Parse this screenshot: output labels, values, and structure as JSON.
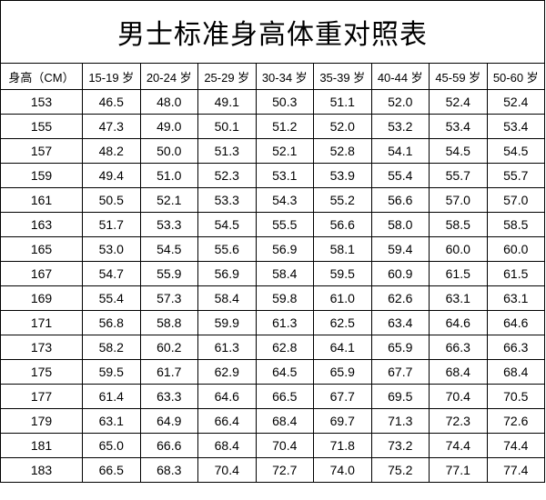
{
  "title": "男士标准身高体重对照表",
  "header": [
    "身高（CM）",
    "15-19 岁",
    "20-24 岁",
    "25-29 岁",
    "30-34 岁",
    "35-39 岁",
    "40-44 岁",
    "45-59 岁",
    "50-60 岁"
  ],
  "rows": [
    [
      "153",
      "46.5",
      "48.0",
      "49.1",
      "50.3",
      "51.1",
      "52.0",
      "52.4",
      "52.4"
    ],
    [
      "155",
      "47.3",
      "49.0",
      "50.1",
      "51.2",
      "52.0",
      "53.2",
      "53.4",
      "53.4"
    ],
    [
      "157",
      "48.2",
      "50.0",
      "51.3",
      "52.1",
      "52.8",
      "54.1",
      "54.5",
      "54.5"
    ],
    [
      "159",
      "49.4",
      "51.0",
      "52.3",
      "53.1",
      "53.9",
      "55.4",
      "55.7",
      "55.7"
    ],
    [
      "161",
      "50.5",
      "52.1",
      "53.3",
      "54.3",
      "55.2",
      "56.6",
      "57.0",
      "57.0"
    ],
    [
      "163",
      "51.7",
      "53.3",
      "54.5",
      "55.5",
      "56.6",
      "58.0",
      "58.5",
      "58.5"
    ],
    [
      "165",
      "53.0",
      "54.5",
      "55.6",
      "56.9",
      "58.1",
      "59.4",
      "60.0",
      "60.0"
    ],
    [
      "167",
      "54.7",
      "55.9",
      "56.9",
      "58.4",
      "59.5",
      "60.9",
      "61.5",
      "61.5"
    ],
    [
      "169",
      "55.4",
      "57.3",
      "58.4",
      "59.8",
      "61.0",
      "62.6",
      "63.1",
      "63.1"
    ],
    [
      "171",
      "56.8",
      "58.8",
      "59.9",
      "61.3",
      "62.5",
      "63.4",
      "64.6",
      "64.6"
    ],
    [
      "173",
      "58.2",
      "60.2",
      "61.3",
      "62.8",
      "64.1",
      "65.9",
      "66.3",
      "66.3"
    ],
    [
      "175",
      "59.5",
      "61.7",
      "62.9",
      "64.5",
      "65.9",
      "67.7",
      "68.4",
      "68.4"
    ],
    [
      "177",
      "61.4",
      "63.3",
      "64.6",
      "66.5",
      "67.7",
      "69.5",
      "70.4",
      "70.5"
    ],
    [
      "179",
      "63.1",
      "64.9",
      "66.4",
      "68.4",
      "69.7",
      "71.3",
      "72.3",
      "72.6"
    ],
    [
      "181",
      "65.0",
      "66.6",
      "68.4",
      "70.4",
      "71.8",
      "73.2",
      "74.4",
      "74.4"
    ],
    [
      "183",
      "66.5",
      "68.3",
      "70.4",
      "72.7",
      "74.0",
      "75.2",
      "77.1",
      "77.4"
    ]
  ]
}
